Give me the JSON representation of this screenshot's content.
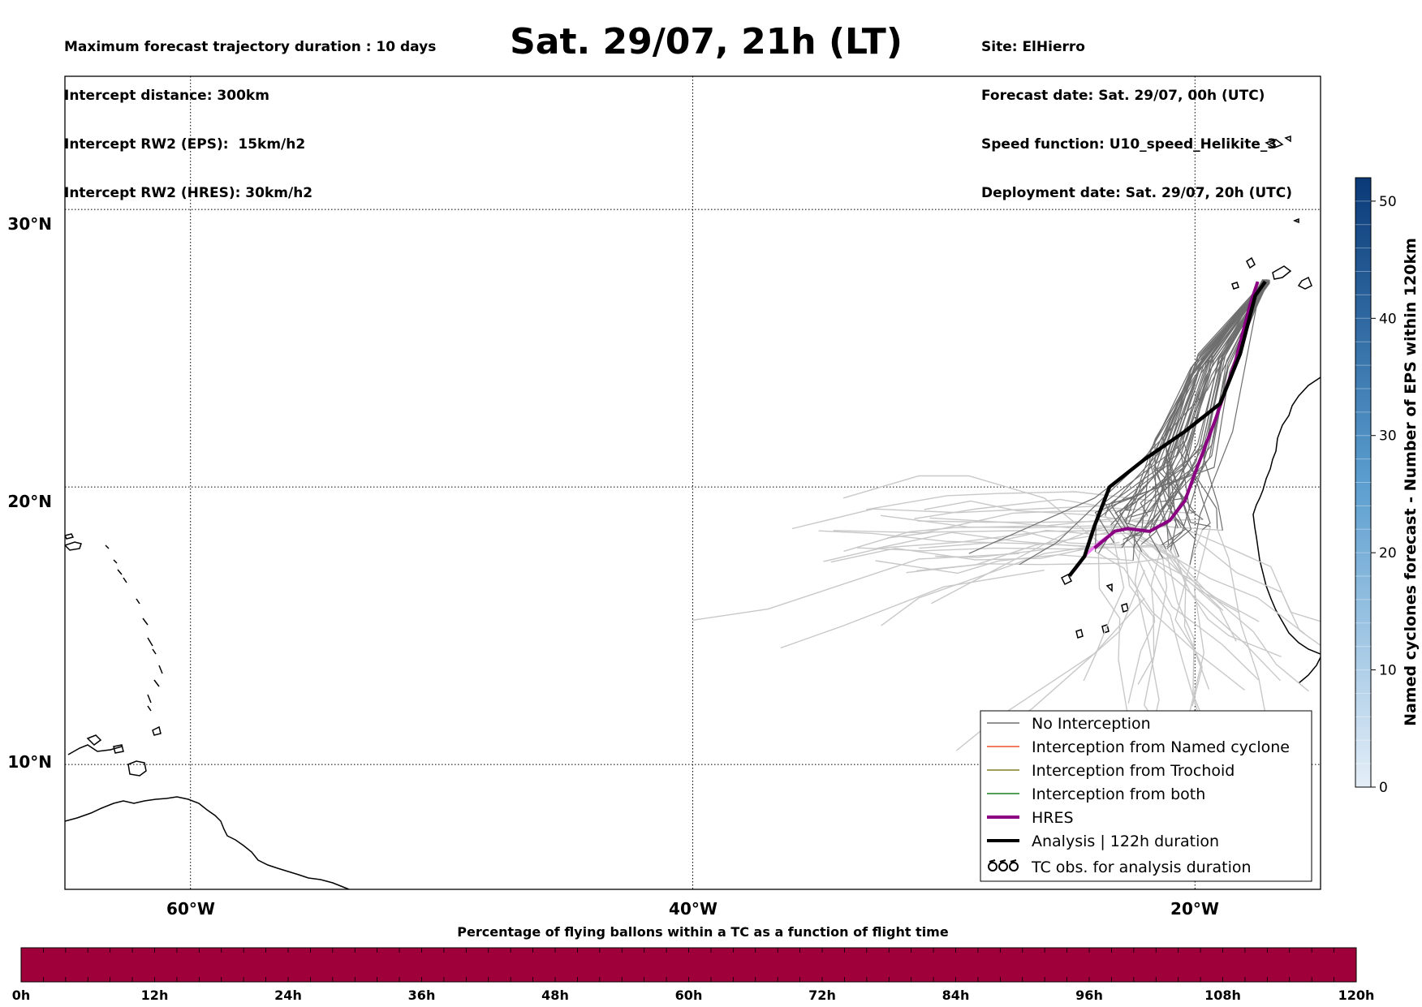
{
  "header": {
    "left_lines": [
      "Maximum forecast trajectory duration : 10 days",
      "Intercept distance: 300km",
      "Intercept RW2 (EPS):  15km/h2",
      "Intercept RW2 (HRES): 30km/h2"
    ],
    "title": "Sat. 29/07, 21h (LT)",
    "right_lines": [
      "Site: ElHierro",
      "Forecast date: Sat. 29/07, 00h (UTC)",
      "Speed function: U10_speed_Helikite_3",
      "Deployment date: Sat. 29/07, 20h (UTC)"
    ]
  },
  "map": {
    "lon_range": [
      -65,
      -15
    ],
    "lat_range": [
      5.5,
      34.8
    ],
    "meridians": [
      -60,
      -40,
      -20
    ],
    "parallels": [
      10,
      20,
      30
    ],
    "lon_labels": [
      "60°W",
      "40°W",
      "20°W"
    ],
    "lat_labels": [
      "10°N",
      "20°N",
      "30°N"
    ]
  },
  "trajectories": {
    "no_interception_color": "#6e6e6e",
    "late_color": "#c8c8c8",
    "hres_color": "#8b0082",
    "hres_late_color": "#ee77ee",
    "analysis_color": "#000000",
    "hres_path": [
      [
        -17.5,
        27.4
      ],
      [
        -17.8,
        26.6
      ],
      [
        -18.4,
        24.5
      ],
      [
        -19.2,
        22.4
      ],
      [
        -20.0,
        20.5
      ],
      [
        -20.4,
        19.5
      ],
      [
        -21.0,
        18.8
      ],
      [
        -21.8,
        18.4
      ],
      [
        -22.7,
        18.5
      ],
      [
        -23.2,
        18.4
      ],
      [
        -24.0,
        17.8
      ]
    ],
    "hres_late_path": [
      [
        -23.2,
        18.4
      ],
      [
        -23.8,
        18.0
      ],
      [
        -24.3,
        17.6
      ],
      [
        -24.8,
        17.0
      ]
    ],
    "analysis_path": [
      [
        -17.2,
        27.4
      ],
      [
        -17.6,
        26.9
      ],
      [
        -18.2,
        24.8
      ],
      [
        -19.0,
        23.0
      ],
      [
        -20.4,
        22.0
      ],
      [
        -22.0,
        21.0
      ],
      [
        -23.4,
        20.0
      ],
      [
        -24.0,
        18.6
      ],
      [
        -24.4,
        17.5
      ],
      [
        -25.0,
        16.8
      ]
    ]
  },
  "legend": {
    "items": [
      {
        "label": "No Interception",
        "color": "#6e6e6e",
        "width": 1.5,
        "symbol": "line"
      },
      {
        "label": "Interception from Named cyclone",
        "color": "#e8542a",
        "width": 1.5,
        "symbol": "line"
      },
      {
        "label": "Interception from Trochoid",
        "color": "#808020",
        "width": 1.5,
        "symbol": "line"
      },
      {
        "label": "Interception from both",
        "color": "#1f7f1f",
        "width": 1.5,
        "symbol": "line"
      },
      {
        "label": "HRES",
        "color": "#8b0082",
        "width": 4,
        "symbol": "line"
      },
      {
        "label": "Analysis | 122h duration",
        "color": "#000000",
        "width": 4,
        "symbol": "line"
      },
      {
        "label": "TC obs. for analysis duration",
        "color": "#000000",
        "width": 0,
        "symbol": "tc"
      }
    ]
  },
  "colorbar_right": {
    "label": "Named cyclones forecast - Number of EPS within 120km",
    "min": 0,
    "max": 52,
    "ticks": [
      0,
      10,
      20,
      30,
      40,
      50
    ],
    "color_low": "#e4eef8",
    "color_high": "#0a3a78"
  },
  "colorbar_bottom": {
    "title": "Percentage of flying ballons within a TC as a function of flight time",
    "ticks": [
      "0h",
      "12h",
      "24h",
      "36h",
      "48h",
      "60h",
      "72h",
      "84h",
      "96h",
      "108h",
      "120h"
    ],
    "color": "#a0003a"
  }
}
